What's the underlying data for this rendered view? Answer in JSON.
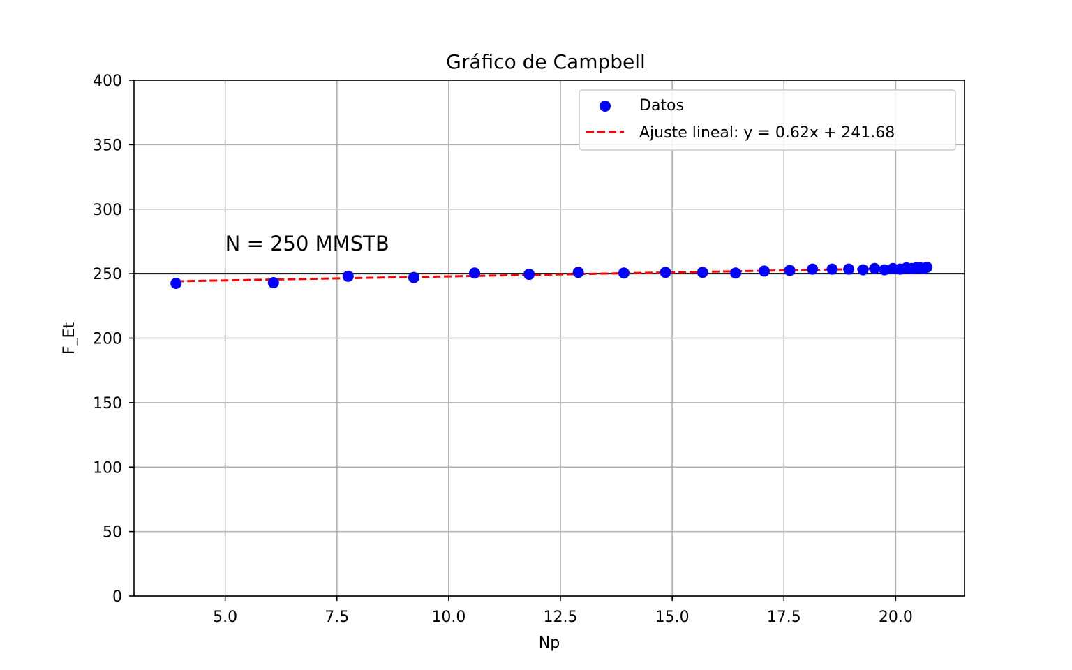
{
  "chart_data": {
    "type": "scatter",
    "title": "Gráfico de Campbell",
    "xlabel": "Np",
    "ylabel": "F_Et",
    "xlim": [
      2.96,
      21.54
    ],
    "ylim": [
      0,
      400
    ],
    "x_ticks": [
      "5.0",
      "7.5",
      "10.0",
      "12.5",
      "15.0",
      "17.5",
      "20.0"
    ],
    "x_tick_values": [
      5.0,
      7.5,
      10.0,
      12.5,
      15.0,
      17.5,
      20.0
    ],
    "y_ticks": [
      "0",
      "50",
      "100",
      "150",
      "200",
      "250",
      "300",
      "350",
      "400"
    ],
    "y_tick_values": [
      0,
      50,
      100,
      150,
      200,
      250,
      300,
      350,
      400
    ],
    "grid": true,
    "legend_position": "upper right",
    "series": [
      {
        "name": "Datos",
        "kind": "scatter",
        "color": "#0000ff",
        "points": [
          {
            "x": 3.9,
            "y": 242.5
          },
          {
            "x": 6.08,
            "y": 243.0
          },
          {
            "x": 7.75,
            "y": 248.0
          },
          {
            "x": 9.22,
            "y": 247.0
          },
          {
            "x": 10.58,
            "y": 250.5
          },
          {
            "x": 11.8,
            "y": 249.5
          },
          {
            "x": 12.9,
            "y": 251.0
          },
          {
            "x": 13.92,
            "y": 250.5
          },
          {
            "x": 14.85,
            "y": 251.0
          },
          {
            "x": 15.68,
            "y": 251.0
          },
          {
            "x": 16.42,
            "y": 250.5
          },
          {
            "x": 17.06,
            "y": 252.0
          },
          {
            "x": 17.63,
            "y": 252.5
          },
          {
            "x": 18.14,
            "y": 253.5
          },
          {
            "x": 18.58,
            "y": 253.5
          },
          {
            "x": 18.95,
            "y": 253.5
          },
          {
            "x": 19.27,
            "y": 253.0
          },
          {
            "x": 19.53,
            "y": 254.0
          },
          {
            "x": 19.75,
            "y": 253.0
          },
          {
            "x": 19.94,
            "y": 254.0
          },
          {
            "x": 20.1,
            "y": 253.5
          },
          {
            "x": 20.24,
            "y": 254.5
          },
          {
            "x": 20.36,
            "y": 254.0
          },
          {
            "x": 20.46,
            "y": 254.5
          },
          {
            "x": 20.55,
            "y": 254.5
          },
          {
            "x": 20.62,
            "y": 254.0
          },
          {
            "x": 20.7,
            "y": 255.0
          }
        ]
      },
      {
        "name": "Ajuste lineal: y = 0.62x + 241.68",
        "kind": "line",
        "style": "dashed",
        "color": "#ff0000",
        "slope": 0.62,
        "intercept": 241.68,
        "x_range": [
          3.9,
          20.7
        ]
      }
    ],
    "reference_line": {
      "y": 250,
      "color": "#000000"
    },
    "annotation": {
      "text": "N = 250 MMSTB",
      "x": 5.0,
      "y": 270
    }
  }
}
